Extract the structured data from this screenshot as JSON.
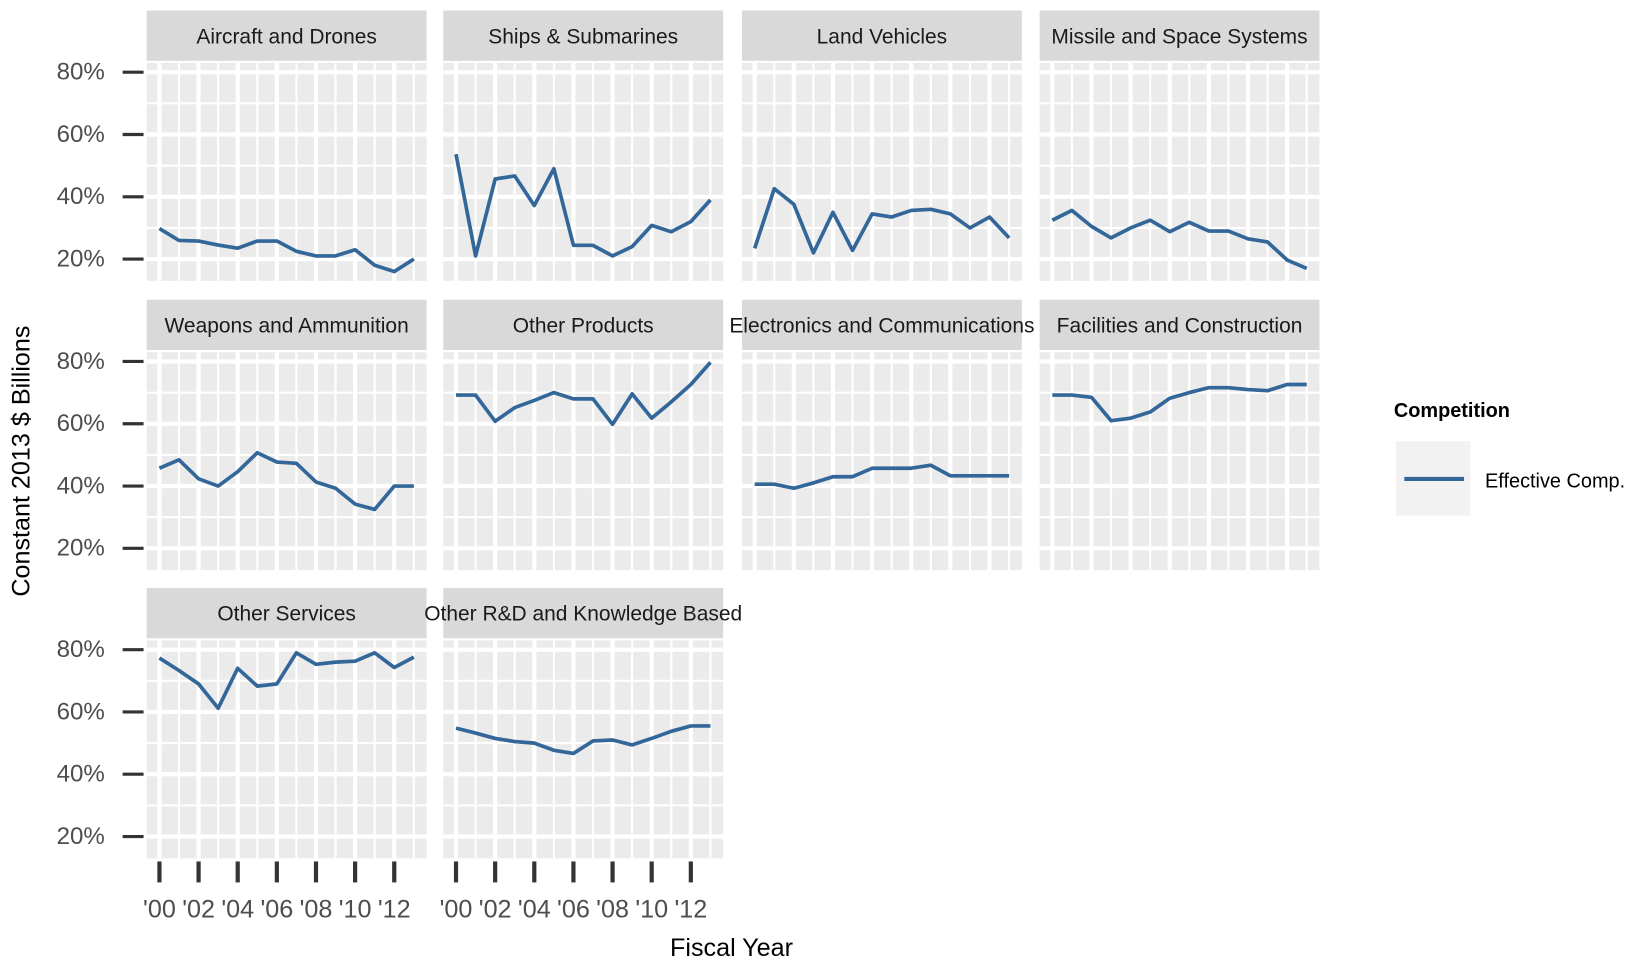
{
  "chart_data": {
    "type": "line",
    "x_label": "Fiscal Year",
    "y_label": "Constant 2013 $ Billions",
    "legend_title": "Competition",
    "series": [
      {
        "name": "Effective Comp.",
        "color": "#336699"
      }
    ],
    "x": [
      2000,
      2001,
      2002,
      2003,
      2004,
      2005,
      2006,
      2007,
      2008,
      2009,
      2010,
      2011,
      2012,
      2013
    ],
    "xlim": [
      1999.35,
      2013.65
    ],
    "xticks": [
      {
        "value": 2000,
        "label": "'00"
      },
      {
        "value": 2002,
        "label": "'02"
      },
      {
        "value": 2004,
        "label": "'04"
      },
      {
        "value": 2006,
        "label": "'06"
      },
      {
        "value": 2008,
        "label": "'08"
      },
      {
        "value": 2010,
        "label": "'10"
      },
      {
        "value": 2012,
        "label": "'12"
      }
    ],
    "x_minor_grid": [
      2001,
      2003,
      2005,
      2007,
      2009,
      2011,
      2013
    ],
    "ylim": [
      13,
      83
    ],
    "yticks": [
      {
        "value": 20,
        "label": "20%"
      },
      {
        "value": 40,
        "label": "40%"
      },
      {
        "value": 60,
        "label": "60%"
      },
      {
        "value": 80,
        "label": "80%"
      }
    ],
    "y_minor_grid": [
      30,
      50,
      70
    ],
    "grid": true,
    "legend_position": "right",
    "panels": [
      {
        "title": "Aircraft and Drones",
        "values": [
          29.8,
          26,
          25.8,
          24.5,
          23.5,
          25.8,
          25.8,
          22.5,
          21,
          21,
          23,
          18,
          16,
          20
        ]
      },
      {
        "title": "Ships & Submarines",
        "values": [
          53.7,
          21,
          45.7,
          46.7,
          37.2,
          49,
          24.4,
          24.4,
          21,
          24,
          30.8,
          28.8,
          32,
          39
        ]
      },
      {
        "title": "Land Vehicles",
        "values": [
          23.4,
          42.6,
          37.6,
          22,
          35,
          22.8,
          34.5,
          33.5,
          35.6,
          36,
          34.5,
          30,
          33.5,
          26.8
        ]
      },
      {
        "title": "Missile and Space Systems",
        "values": [
          32.5,
          35.6,
          30.5,
          26.8,
          30,
          32.5,
          28.8,
          31.8,
          29,
          29,
          26.5,
          25.5,
          19.7,
          17
        ]
      },
      {
        "title": "Weapons and Ammunition",
        "values": [
          45.7,
          48.4,
          42.3,
          40,
          44.6,
          50.7,
          47.7,
          47.3,
          41.3,
          39.3,
          34.2,
          32.5,
          40,
          40
        ]
      },
      {
        "title": "Other Products",
        "values": [
          69.2,
          69.2,
          60.8,
          65.2,
          67.5,
          70,
          68,
          68,
          59.8,
          69.6,
          61.8,
          67,
          72.6,
          79.7
        ]
      },
      {
        "title": "Electronics and Communications",
        "values": [
          40.6,
          40.6,
          39.3,
          41,
          43,
          43,
          45.7,
          45.7,
          45.7,
          46.7,
          43.3,
          43.3,
          43.3,
          43.3
        ]
      },
      {
        "title": "Facilities and Construction",
        "values": [
          69.2,
          69.2,
          68.5,
          61,
          61.8,
          63.8,
          68.2,
          70,
          71.6,
          71.6,
          71,
          70.6,
          72.6,
          72.6
        ]
      },
      {
        "title": "Other Services",
        "values": [
          77.3,
          73.3,
          69,
          61.2,
          74,
          68.3,
          69,
          79,
          75.3,
          76,
          76.3,
          79,
          74.3,
          77.6
        ]
      },
      {
        "title": "Other R&D and Knowledge Based",
        "values": [
          54.8,
          53.2,
          51.5,
          50.5,
          50,
          47.7,
          46.7,
          50.7,
          51,
          49.4,
          51.5,
          53.8,
          55.5,
          55.5
        ]
      }
    ]
  }
}
